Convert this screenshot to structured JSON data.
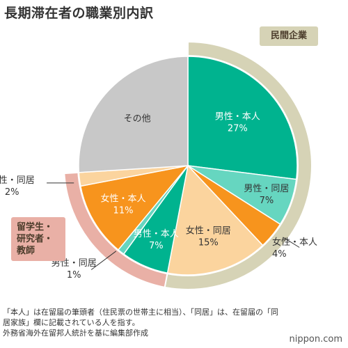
{
  "title": "長期滞在者の職業別内訳",
  "chart_data": {
    "type": "pie",
    "slices": [
      {
        "label": "男性・本人",
        "pct_label": "27%",
        "value": 27,
        "color": "#00b38f",
        "label_color": "#ffffff"
      },
      {
        "label": "男性・同居",
        "pct_label": "7%",
        "value": 7,
        "color": "#66d6c0",
        "label_color": "#333333"
      },
      {
        "label": "女性・本人",
        "pct_label": "4%",
        "value": 4,
        "color": "#f7941d",
        "label_color": "#333333"
      },
      {
        "label": "女性・同居",
        "pct_label": "15%",
        "value": 15,
        "color": "#fbd49e",
        "label_color": "#333333"
      },
      {
        "label": "男性・本人",
        "pct_label": "7%",
        "value": 7,
        "color": "#00b38f",
        "label_color": "#ffffff"
      },
      {
        "label": "男性・同居",
        "pct_label": "1%",
        "value": 1,
        "color": "#66d6c0",
        "label_color": "#333333"
      },
      {
        "label": "女性・本人",
        "pct_label": "11%",
        "value": 11,
        "color": "#f7941d",
        "label_color": "#ffffff"
      },
      {
        "label": "女性・同居",
        "pct_label": "2%",
        "value": 2,
        "color": "#fbd49e",
        "label_color": "#333333"
      },
      {
        "label": "その他",
        "pct_label": "",
        "value": 26,
        "color": "#c8c8c8",
        "label_color": "#333333"
      }
    ],
    "groups": [
      {
        "label": "民間企業",
        "slices": [
          0,
          1,
          2,
          3
        ],
        "ring_color": "#d6d3b6"
      },
      {
        "label": "留学生・研究者・教師",
        "slices": [
          4,
          5,
          6,
          7
        ],
        "ring_color": "#e9b0a6"
      }
    ]
  },
  "callouts": {
    "private_sector": "民間企業",
    "study_lines": [
      "留学生・",
      "研究者・",
      "教師"
    ]
  },
  "footnote": {
    "line1": "「本人」は在留届の筆頭者（住民票の世帯主に相当）、「同居」は、在留届の「同",
    "line2": "居家族」欄に記載されている人を指す。",
    "line3": "外務省海外在留邦人統計を基に編集部作成"
  },
  "brand": "nippon.com"
}
